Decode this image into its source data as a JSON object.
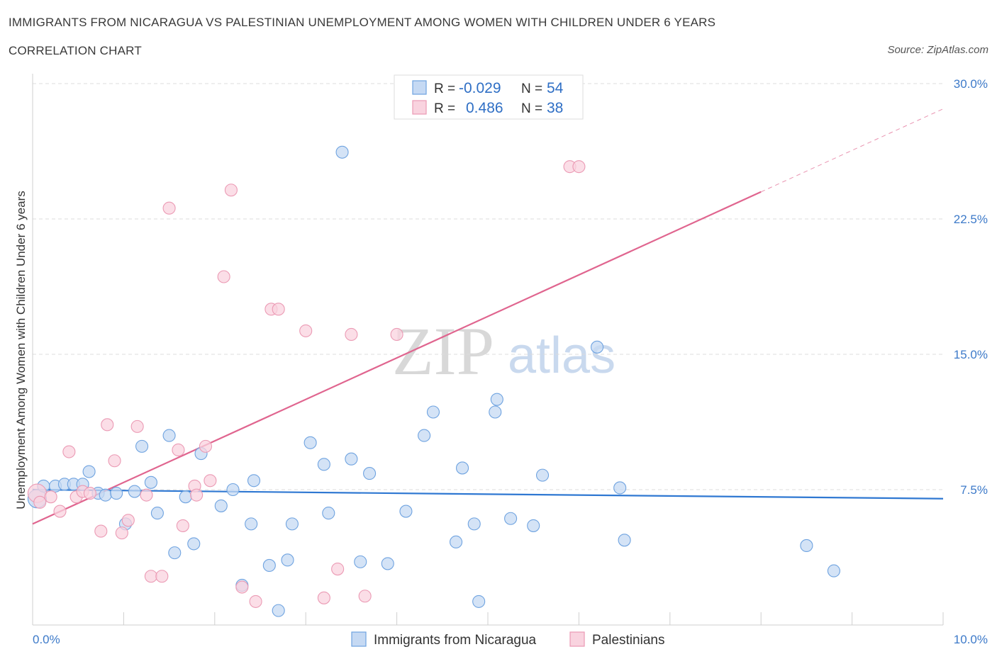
{
  "header": {
    "title": "IMMIGRANTS FROM NICARAGUA VS PALESTINIAN UNEMPLOYMENT AMONG WOMEN WITH CHILDREN UNDER 6 YEARS",
    "subtitle": "CORRELATION CHART",
    "source": "Source: ZipAtlas.com"
  },
  "legend_box": {
    "row1": {
      "r_label": "R =",
      "r_value": "-0.029",
      "n_label": "N =",
      "n_value": "54"
    },
    "row2": {
      "r_label": "R =",
      "r_value": "0.486",
      "n_label": "N =",
      "n_value": "38"
    }
  },
  "watermark": {
    "zip": "ZIP",
    "atlas": "atlas"
  },
  "chart_data": {
    "type": "scatter",
    "title": "IMMIGRANTS FROM NICARAGUA VS PALESTINIAN UNEMPLOYMENT AMONG WOMEN WITH CHILDREN UNDER 6 YEARS",
    "subtitle": "CORRELATION CHART",
    "ylabel": "Unemployment Among Women with Children Under 6 years",
    "xlabel": "",
    "xlim": [
      0,
      10
    ],
    "ylim": [
      0,
      30
    ],
    "x_tick_labels": [
      "0.0%",
      "10.0%"
    ],
    "y_ticks": [
      7.5,
      15.0,
      22.5,
      30.0
    ],
    "y_tick_labels": [
      "7.5%",
      "15.0%",
      "22.5%",
      "30.0%"
    ],
    "grid": "horizontal dashed",
    "legend_position": "bottom",
    "series": [
      {
        "name": "Immigrants from Nicaragua",
        "color": "#6fa3e0",
        "fill": "#c5d9f3",
        "line_color": "#2f78d2",
        "R": -0.029,
        "N": 54,
        "trend": {
          "x": [
            0.0,
            10.0
          ],
          "y": [
            7.5,
            7.0
          ]
        },
        "points": [
          [
            0.05,
            7.0
          ],
          [
            0.12,
            7.7
          ],
          [
            0.25,
            7.7
          ],
          [
            0.35,
            7.8
          ],
          [
            0.45,
            7.8
          ],
          [
            0.55,
            7.8
          ],
          [
            0.62,
            8.5
          ],
          [
            0.72,
            7.3
          ],
          [
            0.8,
            7.2
          ],
          [
            0.92,
            7.3
          ],
          [
            1.02,
            5.6
          ],
          [
            1.12,
            7.4
          ],
          [
            1.2,
            9.9
          ],
          [
            1.3,
            7.9
          ],
          [
            1.37,
            6.2
          ],
          [
            1.5,
            10.5
          ],
          [
            1.56,
            4.0
          ],
          [
            1.68,
            7.1
          ],
          [
            1.77,
            4.5
          ],
          [
            1.85,
            9.5
          ],
          [
            2.07,
            6.6
          ],
          [
            2.2,
            7.5
          ],
          [
            2.3,
            2.2
          ],
          [
            2.4,
            5.6
          ],
          [
            2.43,
            8.0
          ],
          [
            2.6,
            3.3
          ],
          [
            2.7,
            0.8
          ],
          [
            2.8,
            3.6
          ],
          [
            2.85,
            5.6
          ],
          [
            3.05,
            10.1
          ],
          [
            3.2,
            8.9
          ],
          [
            3.25,
            6.2
          ],
          [
            3.4,
            26.2
          ],
          [
            3.5,
            9.2
          ],
          [
            3.6,
            3.5
          ],
          [
            3.7,
            8.4
          ],
          [
            3.9,
            3.4
          ],
          [
            4.1,
            6.3
          ],
          [
            4.3,
            10.5
          ],
          [
            4.4,
            11.8
          ],
          [
            4.65,
            4.6
          ],
          [
            4.72,
            8.7
          ],
          [
            4.85,
            5.6
          ],
          [
            4.9,
            1.3
          ],
          [
            5.08,
            11.8
          ],
          [
            5.1,
            12.5
          ],
          [
            5.25,
            5.9
          ],
          [
            5.5,
            5.5
          ],
          [
            5.6,
            8.3
          ],
          [
            6.2,
            15.4
          ],
          [
            6.45,
            7.6
          ],
          [
            6.5,
            4.7
          ],
          [
            8.5,
            4.4
          ],
          [
            8.8,
            3.0
          ]
        ]
      },
      {
        "name": "Palestinians",
        "color": "#eb9ab4",
        "fill": "#f9d3df",
        "line_color": "#e0658f",
        "R": 0.486,
        "N": 38,
        "trend": {
          "x": [
            0.0,
            8.0
          ],
          "y": [
            5.6,
            24.0
          ]
        },
        "trend_dashed_extension": {
          "x": [
            8.0,
            10.0
          ],
          "y": [
            24.0,
            28.6
          ]
        },
        "points": [
          [
            0.05,
            7.3
          ],
          [
            0.08,
            6.8
          ],
          [
            0.2,
            7.1
          ],
          [
            0.3,
            6.3
          ],
          [
            0.4,
            9.6
          ],
          [
            0.48,
            7.1
          ],
          [
            0.55,
            7.4
          ],
          [
            0.63,
            7.3
          ],
          [
            0.75,
            5.2
          ],
          [
            0.82,
            11.1
          ],
          [
            0.9,
            9.1
          ],
          [
            0.98,
            5.1
          ],
          [
            1.05,
            5.8
          ],
          [
            1.15,
            11.0
          ],
          [
            1.25,
            7.2
          ],
          [
            1.3,
            2.7
          ],
          [
            1.42,
            2.7
          ],
          [
            1.5,
            23.1
          ],
          [
            1.6,
            9.7
          ],
          [
            1.65,
            5.5
          ],
          [
            1.78,
            7.7
          ],
          [
            1.8,
            7.2
          ],
          [
            1.9,
            9.9
          ],
          [
            1.95,
            8.0
          ],
          [
            2.1,
            19.3
          ],
          [
            2.18,
            24.1
          ],
          [
            2.3,
            2.1
          ],
          [
            2.45,
            1.3
          ],
          [
            2.62,
            17.5
          ],
          [
            2.7,
            17.5
          ],
          [
            3.0,
            16.3
          ],
          [
            3.2,
            1.5
          ],
          [
            3.35,
            3.1
          ],
          [
            3.5,
            16.1
          ],
          [
            3.65,
            1.6
          ],
          [
            4.0,
            16.1
          ],
          [
            5.9,
            25.4
          ],
          [
            6.0,
            25.4
          ]
        ]
      }
    ]
  },
  "bottom_legend": [
    {
      "label": "Immigrants from Nicaragua"
    },
    {
      "label": "Palestinians"
    }
  ]
}
